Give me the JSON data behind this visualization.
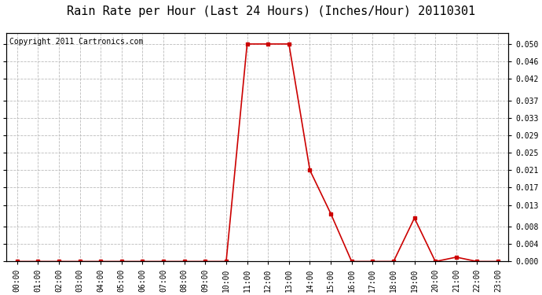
{
  "title": "Rain Rate per Hour (Last 24 Hours) (Inches/Hour) 20110301",
  "copyright_text": "Copyright 2011 Cartronics.com",
  "hours": [
    0,
    1,
    2,
    3,
    4,
    5,
    6,
    7,
    8,
    9,
    10,
    11,
    12,
    13,
    14,
    15,
    16,
    17,
    18,
    19,
    20,
    21,
    22,
    23
  ],
  "values": [
    0.0,
    0.0,
    0.0,
    0.0,
    0.0,
    0.0,
    0.0,
    0.0,
    0.0,
    0.0,
    0.0,
    0.05,
    0.05,
    0.05,
    0.021,
    0.011,
    0.0,
    0.0,
    0.0,
    0.01,
    0.0,
    0.001,
    0.0,
    0.0
  ],
  "line_color": "#cc0000",
  "marker_color": "#cc0000",
  "bg_color": "#ffffff",
  "grid_color": "#bbbbbb",
  "yticks": [
    0.0,
    0.004,
    0.008,
    0.013,
    0.017,
    0.021,
    0.025,
    0.029,
    0.033,
    0.037,
    0.042,
    0.046,
    0.05
  ],
  "ylim": [
    0.0,
    0.0525
  ],
  "title_fontsize": 11,
  "copyright_fontsize": 7,
  "tick_fontsize": 7,
  "fig_width": 6.9,
  "fig_height": 3.75,
  "dpi": 100
}
